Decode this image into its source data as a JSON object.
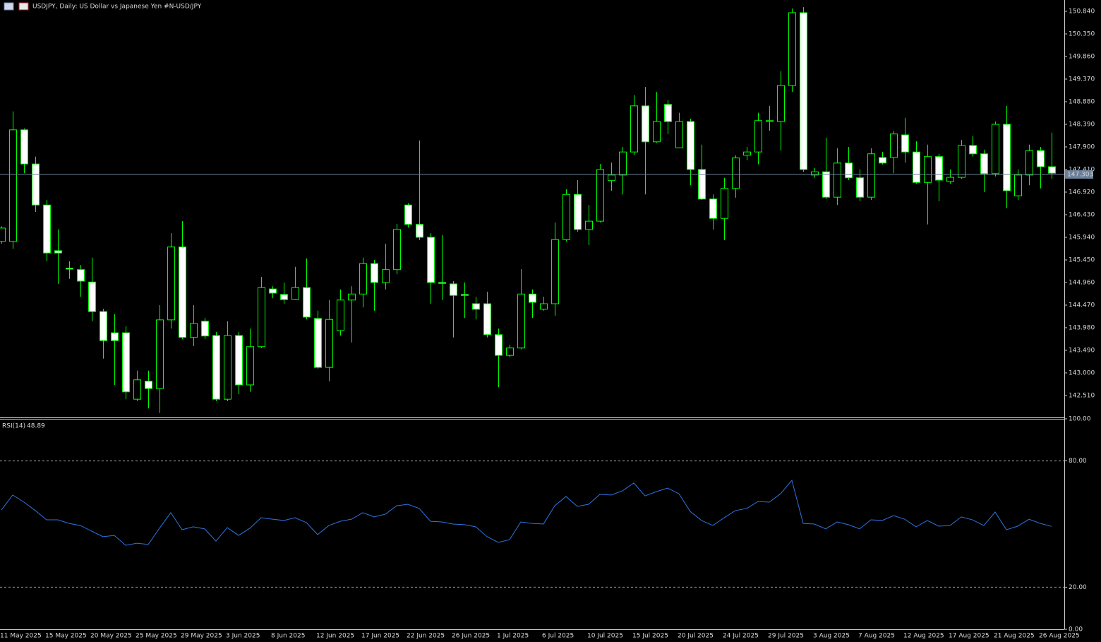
{
  "chart_data": [
    {
      "type": "candlestick",
      "title": "USDJPY, Daily:  US Dollar vs  Japanese Yen #N-USD/JPY",
      "categories": [
        "11 May 2025",
        null,
        null,
        null,
        "15 May 2025",
        null,
        null,
        null,
        "20 May 2025",
        null,
        null,
        null,
        "25 May 2025",
        null,
        null,
        null,
        "29 May 2025",
        null,
        null,
        null,
        "3 Jun 2025",
        null,
        null,
        null,
        "8 Jun 2025",
        null,
        null,
        null,
        "12 Jun 2025",
        null,
        null,
        null,
        "17 Jun 2025",
        null,
        null,
        null,
        "22 Jun 2025",
        null,
        null,
        null,
        "26 Jun 2025",
        null,
        null,
        null,
        "1 Jul 2025",
        null,
        null,
        null,
        "6 Jul 2025",
        null,
        null,
        null,
        "10 Jul 2025",
        null,
        null,
        null,
        "15 Jul 2025",
        null,
        null,
        null,
        "20 Jul 2025",
        null,
        null,
        null,
        "24 Jul 2025",
        null,
        null,
        null,
        "29 Jul 2025",
        null,
        null,
        null,
        "3 Aug 2025",
        null,
        null,
        null,
        "7 Aug 2025",
        null,
        null,
        null,
        "12 Aug 2025",
        null,
        null,
        null,
        "17 Aug 2025",
        null,
        null,
        null,
        "21 Aug 2025",
        null,
        null,
        null,
        "26 Aug 2025",
        null
      ],
      "open": [
        145.85,
        145.85,
        148.27,
        147.53,
        146.64,
        145.65,
        145.27,
        145.24,
        144.97,
        144.33,
        143.87,
        143.87,
        142.43,
        142.82,
        142.66,
        144.15,
        145.73,
        143.77,
        144.12,
        143.81,
        142.43,
        143.81,
        142.74,
        143.57,
        144.82,
        144.7,
        144.59,
        144.85,
        144.18,
        143.12,
        143.92,
        144.58,
        144.71,
        145.37,
        144.96,
        145.24,
        146.64,
        146.22,
        145.94,
        144.96,
        144.93,
        144.7,
        144.5,
        144.5,
        143.83,
        143.38,
        143.54,
        144.71,
        144.38,
        144.5,
        145.89,
        146.87,
        146.11,
        146.29,
        147.17,
        147.29,
        147.79,
        148.79,
        148.01,
        148.82,
        147.88,
        148.45,
        147.41,
        146.77,
        146.35,
        147.0,
        147.72,
        147.79,
        148.45,
        148.45,
        149.23,
        150.81,
        147.29,
        147.36,
        146.81,
        147.55,
        147.23,
        146.81,
        147.67,
        147.67,
        148.16,
        147.79,
        147.13,
        147.69,
        147.15,
        147.24,
        147.93,
        147.75,
        147.32,
        148.39,
        146.84,
        147.29,
        147.82,
        147.47
      ],
      "high": [
        146.18,
        148.67,
        148.3,
        147.69,
        146.75,
        146.11,
        145.42,
        145.34,
        145.5,
        144.39,
        144.27,
        144.01,
        143.05,
        143.05,
        144.47,
        146.03,
        146.29,
        144.47,
        144.19,
        143.89,
        144.12,
        143.89,
        143.96,
        145.08,
        144.88,
        144.96,
        145.3,
        145.48,
        144.35,
        144.58,
        144.81,
        144.88,
        145.5,
        145.45,
        145.8,
        146.23,
        146.68,
        148.04,
        146.03,
        145.99,
        144.99,
        144.96,
        144.65,
        144.76,
        143.96,
        143.61,
        145.25,
        144.81,
        144.65,
        146.26,
        146.98,
        147.18,
        146.64,
        147.53,
        147.56,
        147.9,
        149.02,
        149.2,
        149.09,
        148.91,
        148.64,
        148.51,
        147.95,
        146.87,
        147.23,
        147.72,
        147.9,
        148.64,
        148.79,
        149.54,
        150.9,
        150.93,
        147.44,
        148.1,
        147.87,
        147.9,
        147.41,
        147.87,
        147.79,
        148.25,
        148.53,
        148.02,
        147.95,
        147.75,
        147.41,
        148.05,
        148.13,
        147.84,
        148.45,
        148.79,
        147.41,
        147.95,
        147.9,
        148.21
      ],
      "low": [
        145.8,
        145.69,
        147.33,
        146.49,
        145.42,
        144.93,
        145.04,
        144.65,
        144.12,
        143.31,
        142.74,
        142.43,
        142.39,
        142.23,
        142.13,
        143.96,
        143.73,
        143.58,
        143.73,
        142.39,
        142.39,
        142.54,
        142.59,
        143.54,
        144.62,
        144.5,
        144.58,
        144.16,
        143.09,
        142.82,
        143.81,
        143.66,
        144.42,
        144.35,
        144.81,
        145.14,
        146.15,
        145.88,
        144.5,
        144.58,
        143.77,
        144.19,
        144.16,
        143.77,
        142.69,
        143.34,
        143.51,
        144.19,
        144.35,
        144.24,
        145.85,
        146.06,
        145.77,
        146.26,
        146.95,
        146.87,
        147.72,
        146.87,
        147.99,
        148.18,
        147.87,
        147.07,
        146.75,
        146.11,
        145.88,
        146.8,
        147.61,
        147.52,
        148.25,
        147.82,
        149.09,
        147.36,
        147.23,
        146.77,
        146.64,
        147.18,
        146.72,
        146.75,
        147.52,
        147.33,
        147.56,
        147.1,
        146.22,
        146.72,
        147.1,
        147.21,
        147.69,
        146.92,
        147.26,
        146.57,
        146.75,
        147.07,
        147.0,
        147.21
      ],
      "close": [
        146.14,
        148.27,
        147.53,
        146.64,
        145.6,
        145.6,
        145.25,
        144.99,
        144.33,
        143.7,
        143.7,
        142.59,
        142.85,
        142.66,
        144.15,
        145.73,
        143.77,
        144.07,
        143.8,
        142.43,
        143.81,
        142.74,
        143.57,
        144.85,
        144.73,
        144.59,
        144.85,
        144.21,
        143.12,
        144.16,
        144.58,
        144.71,
        145.37,
        144.96,
        145.24,
        146.11,
        146.22,
        145.94,
        144.96,
        144.94,
        144.68,
        144.68,
        144.38,
        143.83,
        143.38,
        143.54,
        144.71,
        144.53,
        144.5,
        145.89,
        146.87,
        146.11,
        146.29,
        147.41,
        147.29,
        147.79,
        148.79,
        148.01,
        148.45,
        148.45,
        148.45,
        147.41,
        146.77,
        146.35,
        147.0,
        147.66,
        147.79,
        148.47,
        148.47,
        149.23,
        150.81,
        147.41,
        147.36,
        146.81,
        147.55,
        147.23,
        146.81,
        147.75,
        147.55,
        148.18,
        147.79,
        147.13,
        147.69,
        147.18,
        147.24,
        147.93,
        147.75,
        147.32,
        148.39,
        146.95,
        147.29,
        147.82,
        147.47,
        147.33
      ],
      "current_price": 147.303,
      "ylim": [
        142.035,
        151.085
      ],
      "yticks": [
        {
          "value": 150.84,
          "label": "150.840"
        },
        {
          "value": 150.35,
          "label": "150.350"
        },
        {
          "value": 149.86,
          "label": "149.860"
        },
        {
          "value": 149.37,
          "label": "149.370"
        },
        {
          "value": 148.88,
          "label": "148.880"
        },
        {
          "value": 148.39,
          "label": "148.390"
        },
        {
          "value": 147.9,
          "label": "147.900"
        },
        {
          "value": 147.41,
          "label": "147.410"
        },
        {
          "value": 146.92,
          "label": "146.920"
        },
        {
          "value": 146.43,
          "label": "146.430"
        },
        {
          "value": 145.94,
          "label": "145.940"
        },
        {
          "value": 145.45,
          "label": "145.450"
        },
        {
          "value": 144.96,
          "label": "144.960"
        },
        {
          "value": 144.47,
          "label": "144.470"
        },
        {
          "value": 143.98,
          "label": "143.980"
        },
        {
          "value": 143.49,
          "label": "143.490"
        },
        {
          "value": 143.0,
          "label": "143.000"
        },
        {
          "value": 142.51,
          "label": "142.510"
        }
      ],
      "colors": {
        "wick": "#00ff00",
        "up_body": "#000000",
        "down_body": "#ffffff",
        "current_line": "#6b7f99"
      }
    },
    {
      "type": "line",
      "title": "RSI(14)",
      "values": [
        56.7,
        63.8,
        60.4,
        56.4,
        52.0,
        52.0,
        50.3,
        49.3,
        46.6,
        44.0,
        44.6,
        39.9,
        40.9,
        40.3,
        48.0,
        55.4,
        47.3,
        48.7,
        47.7,
        41.9,
        48.3,
        44.6,
        48.0,
        53.0,
        52.3,
        51.7,
        53.0,
        50.7,
        45.0,
        49.3,
        51.3,
        52.3,
        55.4,
        53.4,
        54.7,
        58.7,
        59.4,
        57.4,
        51.3,
        51.0,
        50.0,
        49.7,
        48.7,
        44.0,
        41.3,
        42.6,
        51.0,
        50.3,
        50.0,
        58.7,
        63.1,
        58.4,
        59.4,
        64.1,
        63.8,
        65.8,
        69.5,
        63.4,
        65.4,
        67.1,
        64.4,
        56.0,
        51.7,
        49.3,
        53.0,
        56.4,
        57.4,
        60.7,
        60.4,
        64.4,
        70.8,
        50.3,
        50.0,
        47.7,
        51.0,
        49.7,
        47.7,
        52.0,
        51.7,
        54.0,
        52.3,
        48.7,
        51.7,
        49.0,
        49.3,
        53.4,
        52.0,
        49.3,
        55.7,
        47.3,
        49.0,
        52.3,
        50.3,
        48.89
      ],
      "color": "#2f74e0",
      "ylim": [
        0,
        100
      ],
      "yticks": [
        {
          "value": 100,
          "label": "100.00"
        },
        {
          "value": 80,
          "label": "80.00"
        },
        {
          "value": 20,
          "label": "20.00"
        },
        {
          "value": 0,
          "label": "0.00"
        }
      ]
    }
  ]
}
